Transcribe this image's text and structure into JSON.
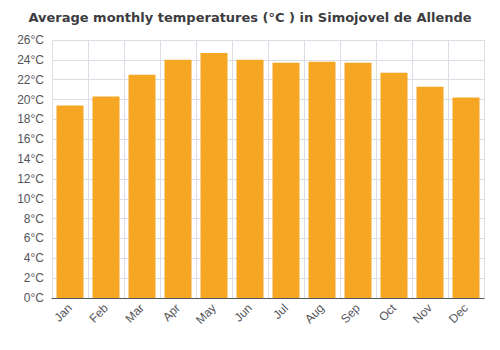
{
  "chart_data": {
    "type": "bar",
    "title": "Average monthly temperatures (°C ) in Simojovel de Allende",
    "categories": [
      "Jan",
      "Feb",
      "Mar",
      "Apr",
      "May",
      "Jun",
      "Jul",
      "Aug",
      "Sep",
      "Oct",
      "Nov",
      "Dec"
    ],
    "values": [
      19.4,
      20.3,
      22.5,
      24.0,
      24.7,
      24.0,
      23.7,
      23.8,
      23.7,
      22.7,
      21.3,
      20.2
    ],
    "color": "#F5A623",
    "ylim": [
      0,
      26
    ],
    "yticks": [
      {
        "value": 0,
        "label": "0°C"
      },
      {
        "value": 2,
        "label": "2°C"
      },
      {
        "value": 4,
        "label": "4°C"
      },
      {
        "value": 6,
        "label": "6°C"
      },
      {
        "value": 8,
        "label": "8°C"
      },
      {
        "value": 10,
        "label": "10°C"
      },
      {
        "value": 12,
        "label": "12°C"
      },
      {
        "value": 14,
        "label": "14°C"
      },
      {
        "value": 16,
        "label": "16°C"
      },
      {
        "value": 18,
        "label": "18°C"
      },
      {
        "value": 20,
        "label": "20°C"
      },
      {
        "value": 22,
        "label": "22°C"
      },
      {
        "value": 24,
        "label": "24°C"
      },
      {
        "value": 26,
        "label": "26°C"
      }
    ],
    "grid": true
  }
}
